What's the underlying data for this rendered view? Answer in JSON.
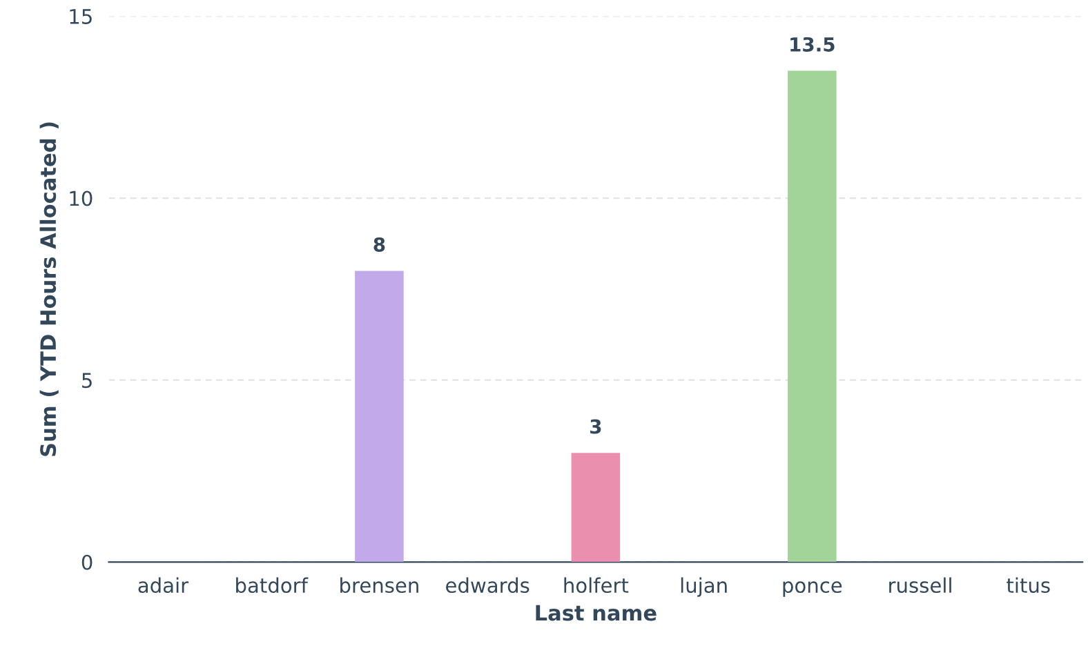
{
  "chart_data": {
    "type": "bar",
    "xlabel": "Last name",
    "ylabel": "Sum ( YTD Hours Allocated )",
    "categories": [
      "adair",
      "batdorf",
      "brensen",
      "edwards",
      "holfert",
      "lujan",
      "ponce",
      "russell",
      "titus"
    ],
    "values": [
      0,
      0,
      8,
      0,
      3,
      0,
      13.5,
      0,
      0
    ],
    "colors": [
      "#8fb8e0",
      "#f2b27a",
      "#c1a9ea",
      "#7fd1c4",
      "#eb8fae",
      "#f5d57a",
      "#a2d49a",
      "#9ec3e8",
      "#f0a08c"
    ],
    "value_labels": [
      null,
      null,
      "8",
      null,
      "3",
      null,
      "13.5",
      null,
      null
    ],
    "ylim": [
      0,
      15
    ],
    "yticks": [
      0,
      5,
      10,
      15
    ],
    "grid": "y"
  }
}
